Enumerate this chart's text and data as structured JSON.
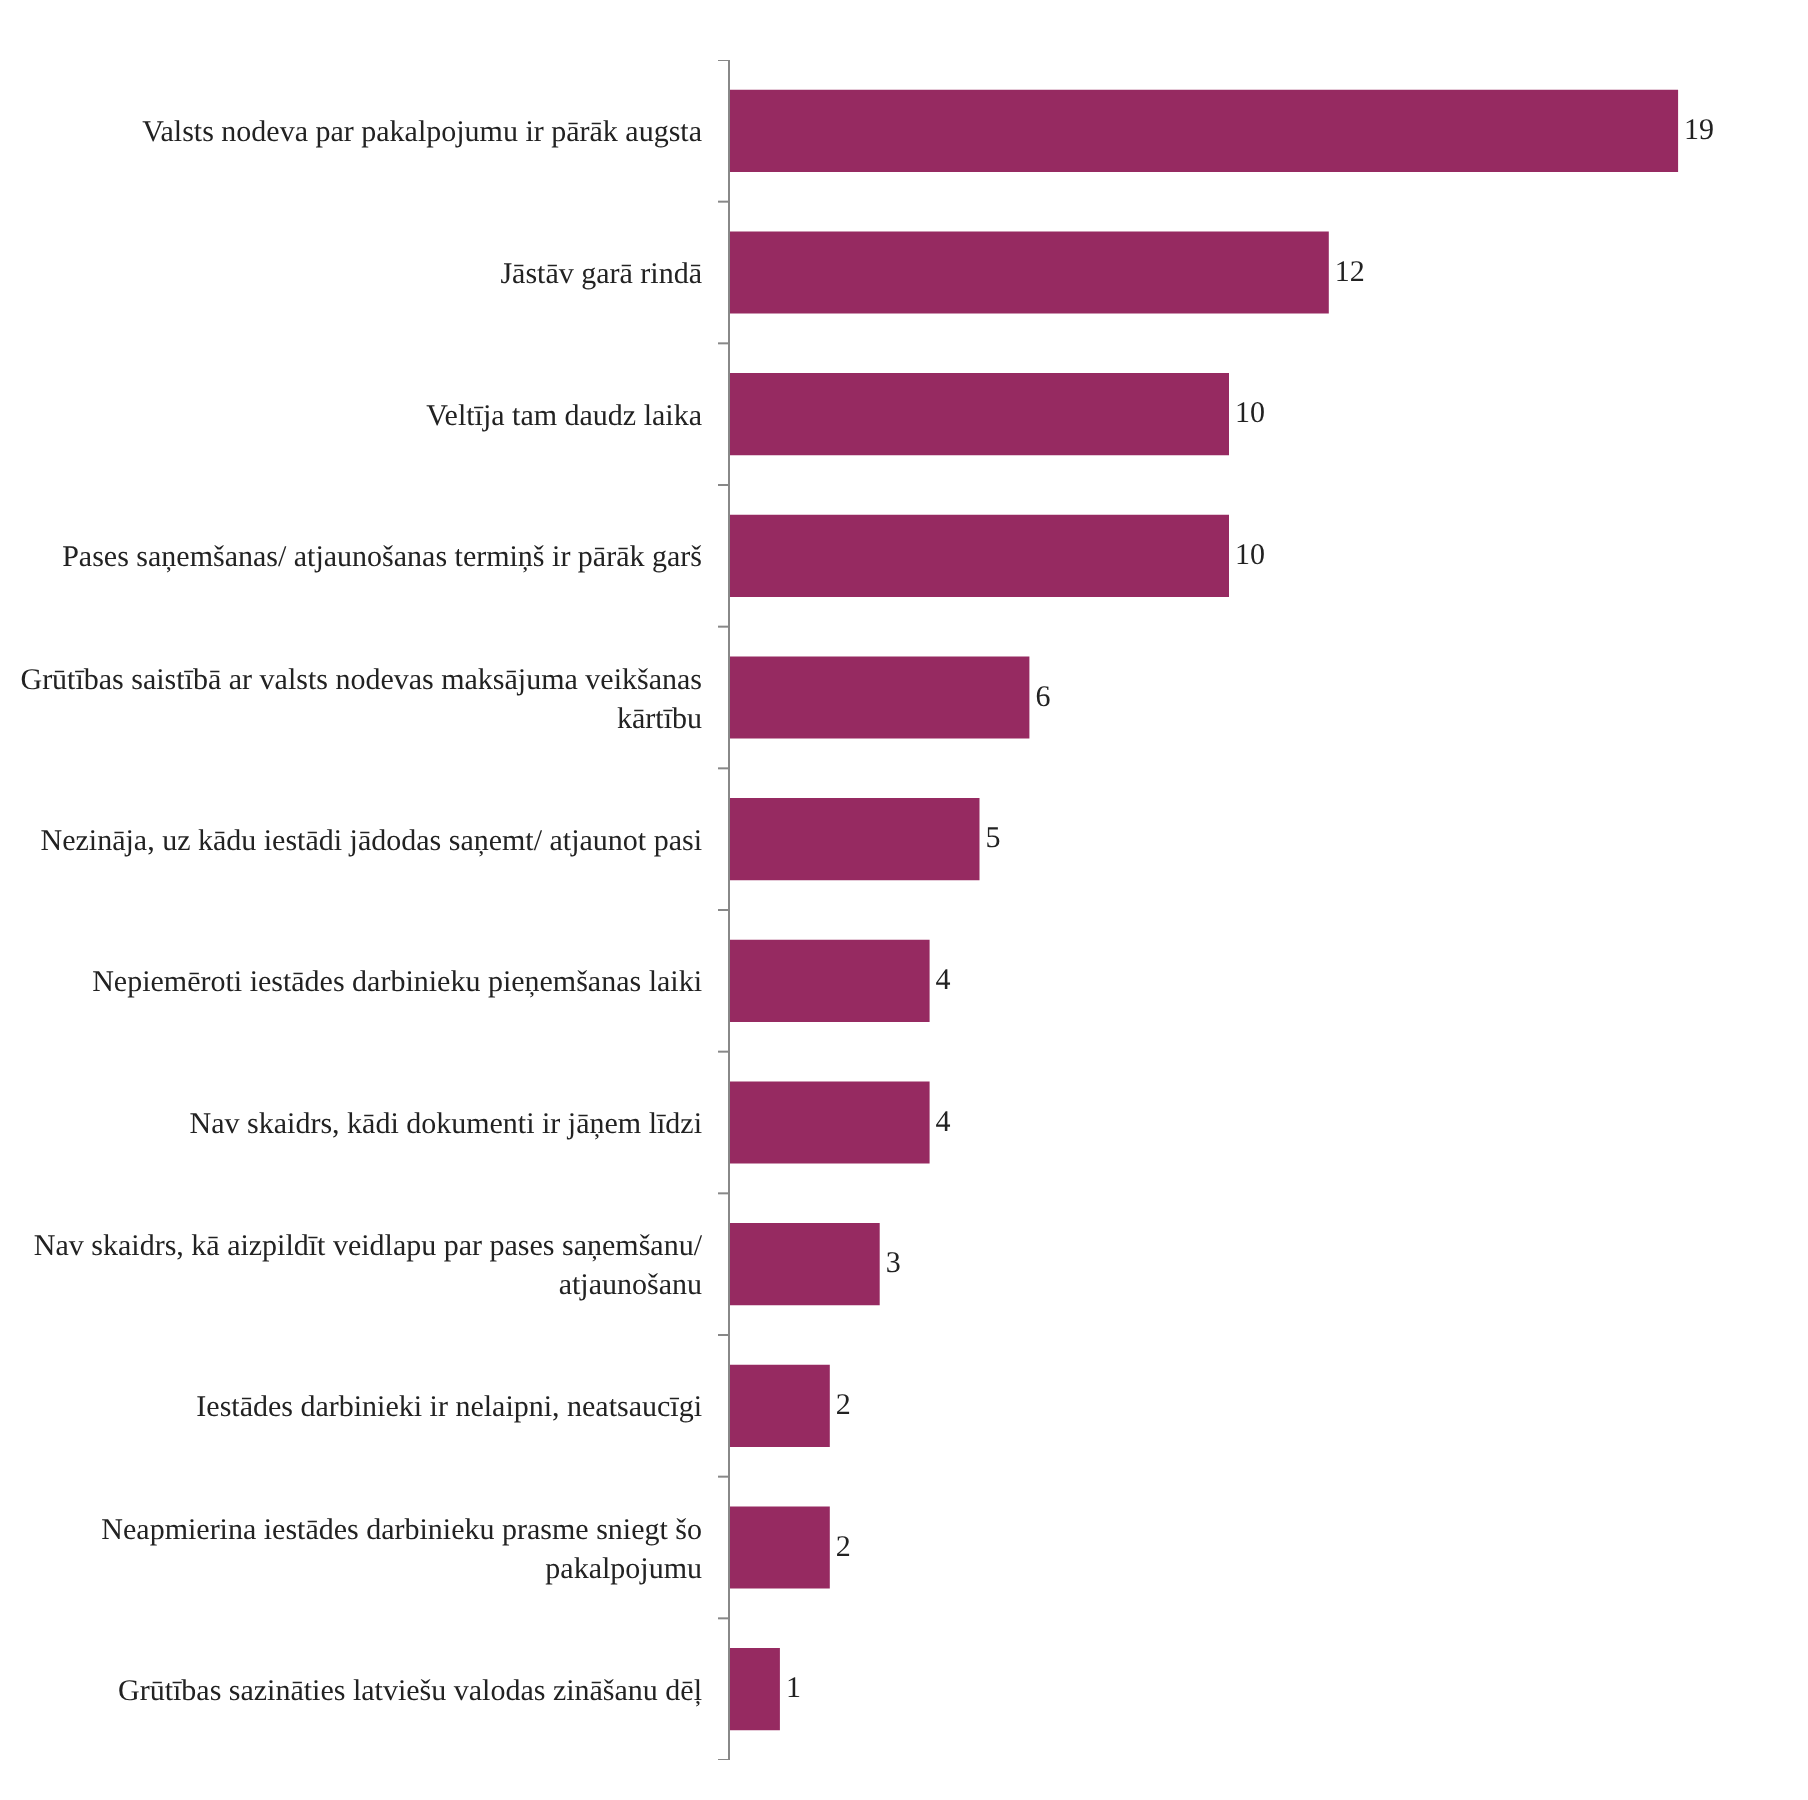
{
  "chart_data": {
    "type": "bar",
    "orientation": "horizontal",
    "data_labels": true,
    "tick_labels": "y",
    "categories": [
      "Valsts nodeva par pakalpojumu ir pārāk augsta",
      "Jāstāv garā rindā",
      "Veltīja tam daudz laika",
      "Pases saņemšanas/ atjaunošanas termiņš ir pārāk garš",
      "Grūtības saistībā ar valsts nodevas maksājuma veikšanas kārtību",
      "Nezināja, uz kādu iestādi jādodas saņemt/ atjaunot pasi",
      "Nepiemēroti iestādes darbinieku pieņemšanas laiki",
      "Nav skaidrs, kādi dokumenti ir jāņem līdzi",
      "Nav skaidrs, kā aizpildīt veidlapu par pases saņemšanu/ atjaunošanu",
      "Iestādes darbinieki ir nelaipni, neatsaucīgi",
      "Neapmierina iestādes darbinieku prasme sniegt šo pakalpojumu",
      "Grūtības sazināties latviešu valodas zināšanu dēļ"
    ],
    "series": [
      {
        "color": "#962a61",
        "values": [
          19,
          12,
          10,
          10,
          6,
          5,
          4,
          4,
          3,
          2,
          2,
          1
        ]
      }
    ]
  }
}
